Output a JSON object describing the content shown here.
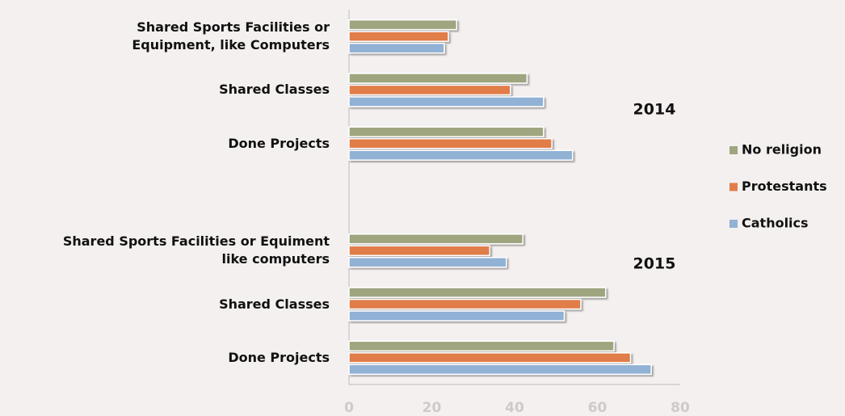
{
  "chart_data": {
    "type": "barh",
    "categories": [
      "Shared Sports Facilities or\nEquipment, like Computers",
      "Shared Classes",
      "Done Projects",
      null,
      "Shared Sports Facilities or Equiment\nlike computers",
      "Shared Classes",
      "Done Projects"
    ],
    "series": [
      {
        "name": "No religion",
        "color": "#9fa57f",
        "values": [
          26,
          43,
          47,
          null,
          42,
          62,
          64
        ]
      },
      {
        "name": "Protestants",
        "color": "#e07d4a",
        "values": [
          24,
          39,
          49,
          null,
          34,
          56,
          68
        ]
      },
      {
        "name": "Catholics",
        "color": "#91b1d5",
        "values": [
          23,
          47,
          54,
          null,
          38,
          52,
          73
        ]
      }
    ],
    "annotations": [
      "2014",
      "2015"
    ],
    "xlim": [
      0,
      80
    ],
    "xticks": [
      0,
      20,
      40,
      60,
      80
    ],
    "grid": false,
    "legend": "right"
  }
}
